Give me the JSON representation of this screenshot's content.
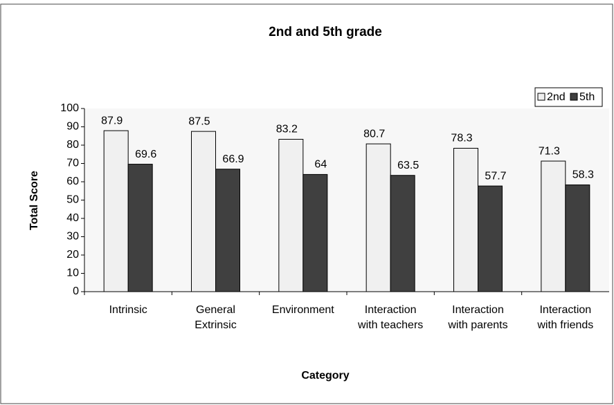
{
  "chart_data": {
    "type": "bar",
    "title": "2nd and 5th grade",
    "categories": [
      "Intrinsic",
      "General Extrinsic",
      "Environment",
      "Interaction with teachers",
      "Interaction with parents",
      "Interaction with friends"
    ],
    "series": [
      {
        "name": "2nd",
        "color": "#f0f0f0",
        "values": [
          87.9,
          87.5,
          83.2,
          80.7,
          78.3,
          71.3
        ]
      },
      {
        "name": "5th",
        "color": "#404040",
        "values": [
          69.6,
          66.9,
          64,
          63.5,
          57.7,
          58.3
        ]
      }
    ],
    "ylim": [
      0,
      100
    ],
    "yticks": [
      0,
      10,
      20,
      30,
      40,
      50,
      60,
      70,
      80,
      90,
      100
    ],
    "xlabel": "Category",
    "ylabel": "Total Score",
    "legend": "top-right",
    "grid": false
  }
}
